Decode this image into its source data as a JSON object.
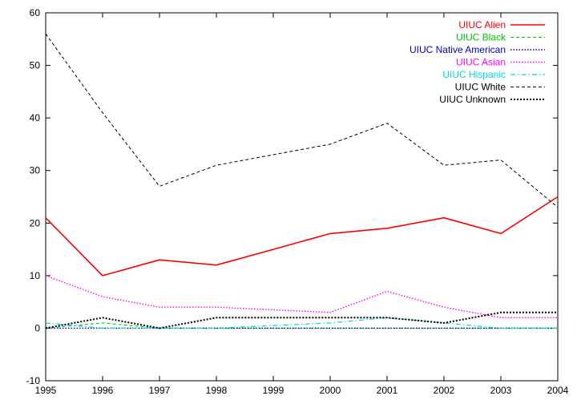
{
  "chart_data": {
    "type": "line",
    "title": "",
    "xlabel": "",
    "ylabel": "",
    "xlim": [
      1995,
      2004
    ],
    "ylim": [
      -10,
      60
    ],
    "x": [
      1995,
      1996,
      1997,
      1998,
      1999,
      2000,
      2001,
      2002,
      2003,
      2004
    ],
    "xticks": [
      "1995",
      "1996",
      "1997",
      "1998",
      "1999",
      "2000",
      "2001",
      "2002",
      "2003",
      "2004"
    ],
    "yticks": [
      "-10",
      "0",
      "10",
      "20",
      "30",
      "40",
      "50",
      "60"
    ],
    "grid": false,
    "legend_position": "top-right",
    "series": [
      {
        "name": "UIUC Alien",
        "color": "#ff0000",
        "dash": "solid",
        "values": [
          21,
          10,
          13,
          12,
          15,
          18,
          19,
          21,
          18,
          25
        ]
      },
      {
        "name": "UIUC Black",
        "color": "#00c000",
        "dash": "dashed",
        "values": [
          0,
          1,
          0,
          0,
          0,
          0,
          0,
          0,
          0,
          0
        ]
      },
      {
        "name": "UIUC Native American",
        "color": "#0000c0",
        "dash": "dotted",
        "values": [
          0,
          0,
          0,
          0,
          0,
          0,
          0,
          0,
          0,
          0
        ]
      },
      {
        "name": "UIUC Asian",
        "color": "#ff00ff",
        "dash": "dotted",
        "values": [
          10,
          6,
          4,
          4,
          3.5,
          3,
          7,
          4,
          2,
          2
        ]
      },
      {
        "name": "UIUC Hispanic",
        "color": "#00d8d8",
        "dash": "dashdot",
        "values": [
          1,
          0,
          0,
          0,
          0.5,
          1,
          2,
          1,
          0,
          0
        ]
      },
      {
        "name": "UIUC White",
        "color": "#000000",
        "dash": "dashed",
        "values": [
          56,
          41,
          27,
          31,
          33,
          35,
          39,
          31,
          32,
          23
        ]
      },
      {
        "name": "UIUC Unknown",
        "color": "#000000",
        "dash": "dotted-thick",
        "values": [
          0,
          2,
          0,
          2,
          2,
          2,
          2,
          1,
          3,
          3
        ]
      }
    ]
  }
}
